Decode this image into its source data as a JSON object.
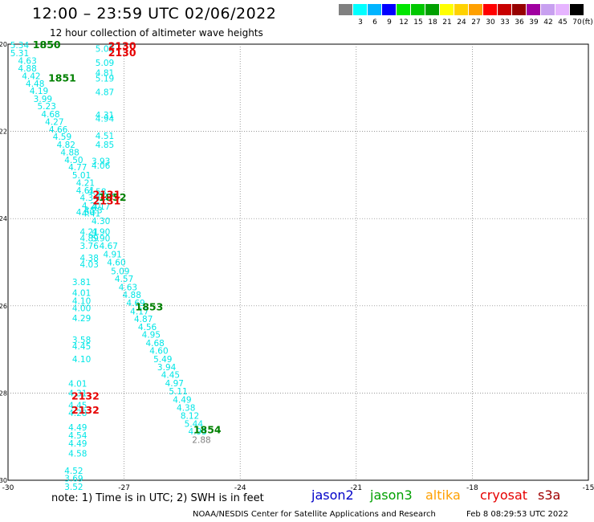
{
  "header": {
    "title": "12:00 – 23:59 UTC 02/06/2022",
    "subtitle": "12 hour collection of altimeter wave heights"
  },
  "legend": {
    "unit": "(ft)",
    "bins": [
      {
        "label": "",
        "color": "#808080"
      },
      {
        "label": "3",
        "color": "#00ffff"
      },
      {
        "label": "6",
        "color": "#00b4ff"
      },
      {
        "label": "9",
        "color": "#0000ff"
      },
      {
        "label": "12",
        "color": "#00e600"
      },
      {
        "label": "15",
        "color": "#00c800"
      },
      {
        "label": "18",
        "color": "#00a000"
      },
      {
        "label": "21",
        "color": "#ffff00"
      },
      {
        "label": "24",
        "color": "#ffd200"
      },
      {
        "label": "27",
        "color": "#ffa000"
      },
      {
        "label": "30",
        "color": "#ff0000"
      },
      {
        "label": "33",
        "color": "#c80000"
      },
      {
        "label": "36",
        "color": "#960000"
      },
      {
        "label": "39",
        "color": "#a000a0"
      },
      {
        "label": "42",
        "color": "#c8a0f0"
      },
      {
        "label": "45",
        "color": "#e6b4ff"
      },
      {
        "label": "70",
        "color": "#000000"
      }
    ]
  },
  "chart_data": {
    "type": "scatter",
    "xlim": [
      -30,
      -15
    ],
    "ylim": [
      -30,
      -20
    ],
    "x_ticks": [
      "-30",
      "-27",
      "-24",
      "-21",
      "-18",
      "-15"
    ],
    "y_ticks": [
      "-20",
      "-22",
      "-24",
      "-26",
      "-28",
      "-30"
    ],
    "points": [
      {
        "x": -29.7,
        "y": -20.02,
        "v": "5.34",
        "c": "#00e6e6"
      },
      {
        "x": -29.7,
        "y": -20.2,
        "v": "5.31",
        "c": "#00e6e6"
      },
      {
        "x": -29.5,
        "y": -20.38,
        "v": "4.63",
        "c": "#00e6e6"
      },
      {
        "x": -29.5,
        "y": -20.55,
        "v": "4.88",
        "c": "#00e6e6"
      },
      {
        "x": -29.4,
        "y": -20.73,
        "v": "4.42",
        "c": "#00e6e6"
      },
      {
        "x": -29.3,
        "y": -20.9,
        "v": "4.48",
        "c": "#00e6e6"
      },
      {
        "x": -29.2,
        "y": -21.07,
        "v": "4.19",
        "c": "#00e6e6"
      },
      {
        "x": -29.1,
        "y": -21.25,
        "v": "3.99",
        "c": "#00e6e6"
      },
      {
        "x": -29.0,
        "y": -21.42,
        "v": "5.23",
        "c": "#00e6e6"
      },
      {
        "x": -28.9,
        "y": -21.6,
        "v": "4.68",
        "c": "#00e6e6"
      },
      {
        "x": -28.8,
        "y": -21.78,
        "v": "4.27",
        "c": "#00e6e6"
      },
      {
        "x": -28.7,
        "y": -21.95,
        "v": "4.66",
        "c": "#00e6e6"
      },
      {
        "x": -28.6,
        "y": -22.12,
        "v": "4.59",
        "c": "#00e6e6"
      },
      {
        "x": -28.5,
        "y": -22.3,
        "v": "4.82",
        "c": "#00e6e6"
      },
      {
        "x": -28.4,
        "y": -22.48,
        "v": "4.88",
        "c": "#00e6e6"
      },
      {
        "x": -28.3,
        "y": -22.65,
        "v": "4.50",
        "c": "#00e6e6"
      },
      {
        "x": -28.2,
        "y": -22.82,
        "v": "4.77",
        "c": "#00e6e6"
      },
      {
        "x": -28.1,
        "y": -23.0,
        "v": "5.01",
        "c": "#00e6e6"
      },
      {
        "x": -28.0,
        "y": -23.18,
        "v": "4.21",
        "c": "#00e6e6"
      },
      {
        "x": -28.0,
        "y": -23.35,
        "v": "4.61",
        "c": "#00e6e6"
      },
      {
        "x": -27.9,
        "y": -23.52,
        "v": "4.34",
        "c": "#00e6e6"
      },
      {
        "x": -27.85,
        "y": -23.7,
        "v": "4.20",
        "c": "#00e6e6"
      },
      {
        "x": -27.85,
        "y": -23.88,
        "v": "4.41",
        "c": "#00e6e6"
      },
      {
        "x": -27.8,
        "y": -23.8,
        "v": "4.23",
        "c": "#00e6e6"
      },
      {
        "x": -27.6,
        "y": -24.05,
        "v": "4.30",
        "c": "#00e6e6"
      },
      {
        "x": -27.9,
        "y": -24.3,
        "v": "4.21",
        "c": "#00e6e6"
      },
      {
        "x": -27.9,
        "y": -24.45,
        "v": "4.89",
        "c": "#00e6e6"
      },
      {
        "x": -27.9,
        "y": -24.62,
        "v": "3.76",
        "c": "#00e6e6"
      },
      {
        "x": -27.9,
        "y": -24.9,
        "v": "4.38",
        "c": "#00e6e6"
      },
      {
        "x": -27.9,
        "y": -25.05,
        "v": "4.03",
        "c": "#00e6e6"
      },
      {
        "x": -27.6,
        "y": -24.45,
        "v": "5.90",
        "c": "#00e6e6"
      },
      {
        "x": -27.6,
        "y": -24.3,
        "v": "4.90",
        "c": "#00e6e6"
      },
      {
        "x": -27.4,
        "y": -24.62,
        "v": "4.67",
        "c": "#00e6e6"
      },
      {
        "x": -27.3,
        "y": -24.82,
        "v": "4.91",
        "c": "#00e6e6"
      },
      {
        "x": -27.2,
        "y": -25.0,
        "v": "4.60",
        "c": "#00e6e6"
      },
      {
        "x": -27.1,
        "y": -25.2,
        "v": "5.09",
        "c": "#00e6e6"
      },
      {
        "x": -27.0,
        "y": -25.38,
        "v": "4.57",
        "c": "#00e6e6"
      },
      {
        "x": -26.9,
        "y": -25.57,
        "v": "4.63",
        "c": "#00e6e6"
      },
      {
        "x": -26.8,
        "y": -25.75,
        "v": "4.88",
        "c": "#00e6e6"
      },
      {
        "x": -26.7,
        "y": -25.93,
        "v": "4.69",
        "c": "#00e6e6"
      },
      {
        "x": -26.6,
        "y": -26.12,
        "v": "4.17",
        "c": "#00e6e6"
      },
      {
        "x": -26.5,
        "y": -26.3,
        "v": "4.87",
        "c": "#00e6e6"
      },
      {
        "x": -26.4,
        "y": -26.48,
        "v": "4.56",
        "c": "#00e6e6"
      },
      {
        "x": -26.3,
        "y": -26.66,
        "v": "4.95",
        "c": "#00e6e6"
      },
      {
        "x": -26.2,
        "y": -26.85,
        "v": "4.68",
        "c": "#00e6e6"
      },
      {
        "x": -26.1,
        "y": -27.03,
        "v": "4.60",
        "c": "#00e6e6"
      },
      {
        "x": -26.0,
        "y": -27.22,
        "v": "5.49",
        "c": "#00e6e6"
      },
      {
        "x": -25.9,
        "y": -27.4,
        "v": "3.94",
        "c": "#00e6e6"
      },
      {
        "x": -25.8,
        "y": -27.58,
        "v": "4.45",
        "c": "#00e6e6"
      },
      {
        "x": -25.7,
        "y": -27.77,
        "v": "4.97",
        "c": "#00e6e6"
      },
      {
        "x": -25.6,
        "y": -27.96,
        "v": "5.11",
        "c": "#00e6e6"
      },
      {
        "x": -25.5,
        "y": -28.15,
        "v": "4.49",
        "c": "#00e6e6"
      },
      {
        "x": -25.4,
        "y": -28.33,
        "v": "4.38",
        "c": "#00e6e6"
      },
      {
        "x": -25.3,
        "y": -28.52,
        "v": "8.12",
        "c": "#00e6e6"
      },
      {
        "x": -25.2,
        "y": -28.7,
        "v": "5.44",
        "c": "#00e6e6"
      },
      {
        "x": -25.1,
        "y": -28.88,
        "v": "4.93",
        "c": "#00e6e6"
      },
      {
        "x": -25.0,
        "y": -29.07,
        "v": "2.88",
        "c": "#808080"
      },
      {
        "x": -27.5,
        "y": -20.1,
        "v": "5.08",
        "c": "#00e6e6"
      },
      {
        "x": -27.5,
        "y": -20.42,
        "v": "5.09",
        "c": "#00e6e6"
      },
      {
        "x": -27.5,
        "y": -20.65,
        "v": "4.81",
        "c": "#00e6e6"
      },
      {
        "x": -27.5,
        "y": -20.78,
        "v": "5.19",
        "c": "#00e6e6"
      },
      {
        "x": -27.5,
        "y": -21.1,
        "v": "4.87",
        "c": "#00e6e6"
      },
      {
        "x": -27.5,
        "y": -21.62,
        "v": "4.31",
        "c": "#00e6e6"
      },
      {
        "x": -27.5,
        "y": -21.7,
        "v": "4.94",
        "c": "#00e6e6"
      },
      {
        "x": -27.5,
        "y": -22.1,
        "v": "4.51",
        "c": "#00e6e6"
      },
      {
        "x": -27.5,
        "y": -22.3,
        "v": "4.85",
        "c": "#00e6e6"
      },
      {
        "x": -27.6,
        "y": -22.68,
        "v": "3.93",
        "c": "#00e6e6"
      },
      {
        "x": -27.6,
        "y": -22.78,
        "v": "4.06",
        "c": "#00e6e6"
      },
      {
        "x": -27.7,
        "y": -23.38,
        "v": "4.58",
        "c": "#00e6e6"
      },
      {
        "x": -27.5,
        "y": -23.5,
        "v": "4.37",
        "c": "#00e6e6"
      },
      {
        "x": -27.6,
        "y": -23.72,
        "v": "4.17",
        "c": "#00e6e6"
      },
      {
        "x": -28.0,
        "y": -23.85,
        "v": "4.60",
        "c": "#00e6e6"
      },
      {
        "x": -28.1,
        "y": -25.45,
        "v": "3.81",
        "c": "#00e6e6"
      },
      {
        "x": -28.1,
        "y": -25.7,
        "v": "4.01",
        "c": "#00e6e6"
      },
      {
        "x": -28.1,
        "y": -25.88,
        "v": "4.10",
        "c": "#00e6e6"
      },
      {
        "x": -28.1,
        "y": -26.05,
        "v": "4.00",
        "c": "#00e6e6"
      },
      {
        "x": -28.1,
        "y": -26.28,
        "v": "4.29",
        "c": "#00e6e6"
      },
      {
        "x": -28.1,
        "y": -26.78,
        "v": "3.58",
        "c": "#00e6e6"
      },
      {
        "x": -28.1,
        "y": -26.92,
        "v": "4.45",
        "c": "#00e6e6"
      },
      {
        "x": -28.1,
        "y": -27.22,
        "v": "4.10",
        "c": "#00e6e6"
      },
      {
        "x": -28.2,
        "y": -27.78,
        "v": "4.01",
        "c": "#00e6e6"
      },
      {
        "x": -28.2,
        "y": -28.0,
        "v": "4.31",
        "c": "#00e6e6"
      },
      {
        "x": -28.2,
        "y": -28.28,
        "v": "4.45",
        "c": "#00e6e6"
      },
      {
        "x": -28.2,
        "y": -28.45,
        "v": "4.28",
        "c": "#00e6e6"
      },
      {
        "x": -28.2,
        "y": -28.78,
        "v": "4.49",
        "c": "#00e6e6"
      },
      {
        "x": -28.2,
        "y": -28.97,
        "v": "4.54",
        "c": "#00e6e6"
      },
      {
        "x": -28.2,
        "y": -29.15,
        "v": "4.49",
        "c": "#00e6e6"
      },
      {
        "x": -28.2,
        "y": -29.38,
        "v": "4.58",
        "c": "#00e6e6"
      },
      {
        "x": -28.3,
        "y": -29.78,
        "v": "4.52",
        "c": "#00e6e6"
      },
      {
        "x": -28.3,
        "y": -29.95,
        "v": "3.69",
        "c": "#00e6e6"
      },
      {
        "x": -28.3,
        "y": -30.15,
        "v": "3.52",
        "c": "#00e6e6"
      }
    ],
    "time_labels": [
      {
        "x": -29.0,
        "y": -20.02,
        "v": "1850",
        "c": "#008000"
      },
      {
        "x": -28.6,
        "y": -20.78,
        "v": "1851",
        "c": "#008000"
      },
      {
        "x": -27.3,
        "y": -23.52,
        "v": "1852",
        "c": "#008000"
      },
      {
        "x": -26.35,
        "y": -26.03,
        "v": "1853",
        "c": "#008000"
      },
      {
        "x": -24.85,
        "y": -28.85,
        "v": "1854",
        "c": "#008000"
      },
      {
        "x": -27.05,
        "y": -20.05,
        "v": "2130",
        "c": "#e60000"
      },
      {
        "x": -27.05,
        "y": -20.2,
        "v": "2130",
        "c": "#e60000"
      },
      {
        "x": -27.45,
        "y": -23.45,
        "v": "2131",
        "c": "#e60000"
      },
      {
        "x": -27.45,
        "y": -23.6,
        "v": "2131",
        "c": "#e60000"
      },
      {
        "x": -28.0,
        "y": -28.08,
        "v": "2132",
        "c": "#e60000"
      },
      {
        "x": -28.0,
        "y": -28.4,
        "v": "2132",
        "c": "#e60000"
      }
    ]
  },
  "footer": {
    "note": "note:  1) Time is in UTC; 2) SWH is in feet",
    "satellites": [
      {
        "name": "jason2",
        "color": "#0000c8"
      },
      {
        "name": "jason3",
        "color": "#00a000"
      },
      {
        "name": "altika",
        "color": "#ffa000"
      },
      {
        "name": "cryosat",
        "color": "#e60000"
      },
      {
        "name": "s3a",
        "color": "#a00000"
      }
    ],
    "credit": "NOAA/NESDIS Center for Satellite Applications and Research",
    "timestamp": "Feb  8 08:29:53 UTC 2022"
  }
}
